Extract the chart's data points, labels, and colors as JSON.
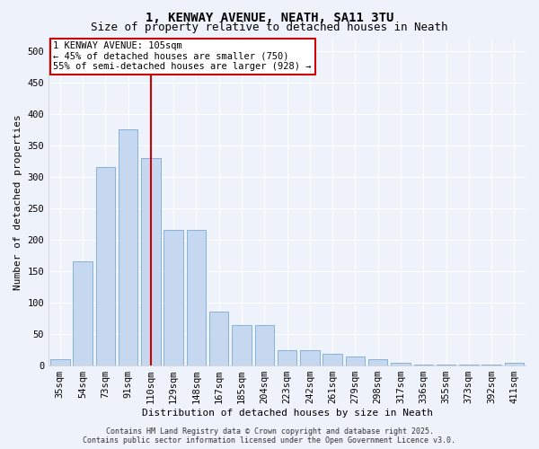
{
  "title": "1, KENWAY AVENUE, NEATH, SA11 3TU",
  "subtitle": "Size of property relative to detached houses in Neath",
  "xlabel": "Distribution of detached houses by size in Neath",
  "ylabel": "Number of detached properties",
  "categories": [
    "35sqm",
    "54sqm",
    "73sqm",
    "91sqm",
    "110sqm",
    "129sqm",
    "148sqm",
    "167sqm",
    "185sqm",
    "204sqm",
    "223sqm",
    "242sqm",
    "261sqm",
    "279sqm",
    "298sqm",
    "317sqm",
    "336sqm",
    "355sqm",
    "373sqm",
    "392sqm",
    "411sqm"
  ],
  "values": [
    10,
    165,
    315,
    375,
    330,
    215,
    215,
    85,
    65,
    65,
    25,
    25,
    18,
    14,
    10,
    5,
    2,
    2,
    2,
    2,
    4
  ],
  "bar_color": "#c5d8f0",
  "bar_edge_color": "#7aaad0",
  "vline_x_index": 4,
  "vline_color": "#cc0000",
  "annotation_text": "1 KENWAY AVENUE: 105sqm\n← 45% of detached houses are smaller (750)\n55% of semi-detached houses are larger (928) →",
  "annotation_box_facecolor": "#ffffff",
  "annotation_box_edgecolor": "#cc0000",
  "footer_text": "Contains HM Land Registry data © Crown copyright and database right 2025.\nContains public sector information licensed under the Open Government Licence v3.0.",
  "background_color": "#eef2fb",
  "grid_color": "#ffffff",
  "spine_color": "#cccccc",
  "ylim": [
    0,
    520
  ],
  "yticks": [
    0,
    50,
    100,
    150,
    200,
    250,
    300,
    350,
    400,
    450,
    500
  ],
  "title_fontsize": 10,
  "subtitle_fontsize": 9,
  "axis_label_fontsize": 8,
  "tick_fontsize": 7.5,
  "annotation_fontsize": 7.5,
  "footer_fontsize": 6
}
